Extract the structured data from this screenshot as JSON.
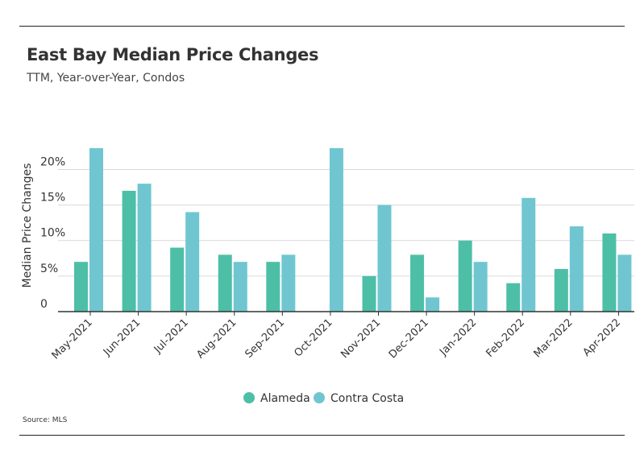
{
  "header": {
    "title": "East Bay Median Price Changes",
    "subtitle": "TTM, Year-over-Year, Condos"
  },
  "footer": {
    "source": "Source:  MLS"
  },
  "colors": {
    "alameda": "#4dbfa6",
    "contra_costa": "#6fc6d1"
  },
  "chart_data": {
    "type": "bar",
    "ylabel": "Median Price Changes",
    "ylim": [
      0,
      23
    ],
    "yticks": [
      {
        "value": 0,
        "label": "0"
      },
      {
        "value": 5,
        "label": "5%"
      },
      {
        "value": 10,
        "label": "10%"
      },
      {
        "value": 15,
        "label": "15%"
      },
      {
        "value": 20,
        "label": "20%"
      }
    ],
    "grid": true,
    "legend": "bottom",
    "categories": [
      "May-2021",
      "Jun-2021",
      "Jul-2021",
      "Aug-2021",
      "Sep-2021",
      "Oct-2021",
      "Nov-2021",
      "Dec-2021",
      "Jan-2022",
      "Feb-2022",
      "Mar-2022",
      "Apr-2022"
    ],
    "series": [
      {
        "name": "Alameda",
        "values": [
          7,
          17,
          9,
          8,
          7,
          0,
          5,
          8,
          10,
          4,
          6,
          11
        ]
      },
      {
        "name": "Contra Costa",
        "values": [
          23,
          18,
          14,
          7,
          8,
          23,
          15,
          2,
          7,
          16,
          12,
          8
        ]
      }
    ]
  }
}
